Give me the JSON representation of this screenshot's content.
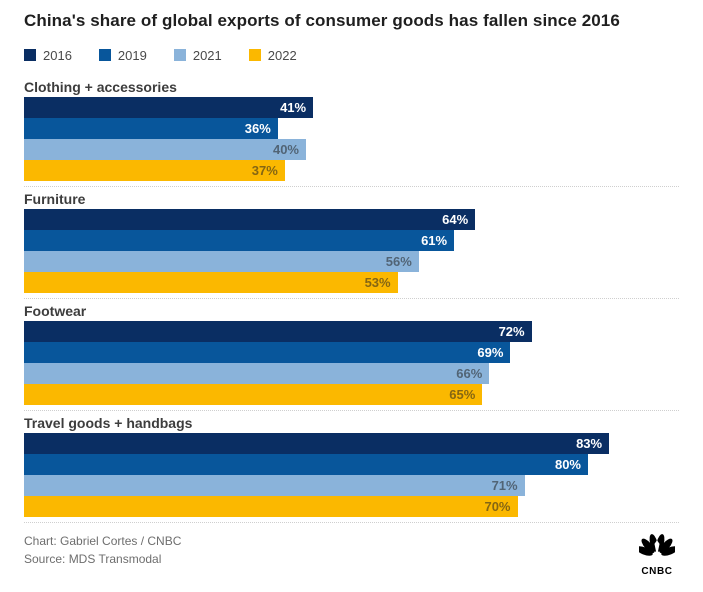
{
  "title": "China's share of global exports of consumer goods has fallen since 2016",
  "chart_data": {
    "type": "bar",
    "orientation": "horizontal",
    "unit": "%",
    "title": "China's share of global exports of consumer goods has fallen since 2016",
    "categories": [
      "Clothing + accessories",
      "Furniture",
      "Footwear",
      "Travel goods + handbags"
    ],
    "series": [
      {
        "name": "2016",
        "color": "#0a2e63",
        "label_style": "light",
        "values": [
          41,
          64,
          72,
          83
        ]
      },
      {
        "name": "2019",
        "color": "#08569b",
        "label_style": "light",
        "values": [
          36,
          61,
          69,
          80
        ]
      },
      {
        "name": "2021",
        "color": "#8ab3da",
        "label_style": "dark",
        "values": [
          40,
          56,
          66,
          71
        ]
      },
      {
        "name": "2022",
        "color": "#fbb800",
        "label_style": "dark",
        "values": [
          37,
          53,
          65,
          70
        ]
      }
    ],
    "legend_position": "top",
    "grid": false,
    "xlim": [
      0,
      93
    ],
    "value_labels": "inside-end"
  },
  "footer": {
    "credit": "Chart: Gabriel Cortes / CNBC",
    "source": "Source: MDS Transmodal",
    "logo_text": "CNBC"
  }
}
